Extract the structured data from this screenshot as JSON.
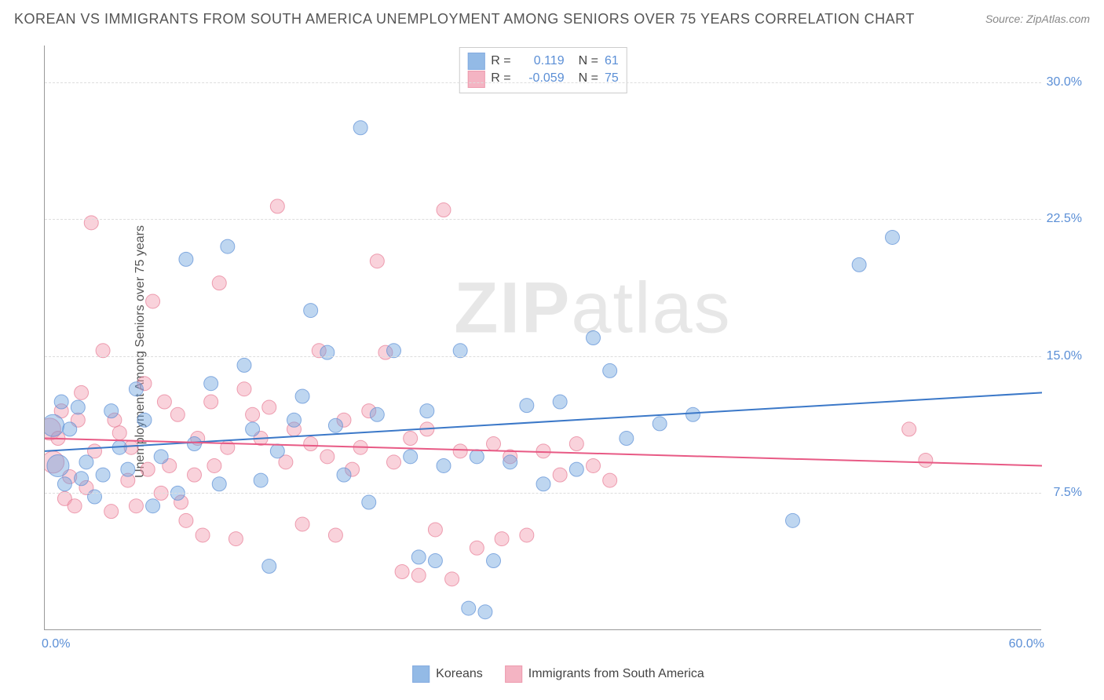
{
  "header": {
    "title": "KOREAN VS IMMIGRANTS FROM SOUTH AMERICA UNEMPLOYMENT AMONG SENIORS OVER 75 YEARS CORRELATION CHART",
    "source": "Source: ZipAtlas.com"
  },
  "chart": {
    "type": "scatter_with_regression",
    "ylabel": "Unemployment Among Seniors over 75 years",
    "xlim": [
      0,
      60
    ],
    "ylim": [
      0,
      32
    ],
    "xtick_labels": [
      "0.0%",
      "60.0%"
    ],
    "ytick_values": [
      7.5,
      15.0,
      22.5,
      30.0
    ],
    "ytick_labels": [
      "7.5%",
      "15.0%",
      "22.5%",
      "30.0%"
    ],
    "grid_color": "#dddddd",
    "axis_color": "#999999",
    "background_color": "#ffffff",
    "marker_radius": 9,
    "marker_radius_large": 14,
    "marker_opacity": 0.45,
    "line_width": 2,
    "watermark": "ZIPatlas",
    "series": [
      {
        "name": "Koreans",
        "color": "#6fa3de",
        "stroke": "#5b8fd6",
        "line_color": "#3b78c8",
        "regression": {
          "y_at_x0": 9.8,
          "y_at_x60": 13.0
        },
        "R": "0.119",
        "N": "61",
        "points": [
          {
            "x": 0.5,
            "y": 11.2,
            "r": 14
          },
          {
            "x": 0.8,
            "y": 9.0,
            "r": 14
          },
          {
            "x": 1.0,
            "y": 12.5
          },
          {
            "x": 1.2,
            "y": 8.0
          },
          {
            "x": 1.5,
            "y": 11.0
          },
          {
            "x": 2.0,
            "y": 12.2
          },
          {
            "x": 2.2,
            "y": 8.3
          },
          {
            "x": 2.5,
            "y": 9.2
          },
          {
            "x": 3.0,
            "y": 7.3
          },
          {
            "x": 3.5,
            "y": 8.5
          },
          {
            "x": 4.0,
            "y": 12.0
          },
          {
            "x": 4.5,
            "y": 10.0
          },
          {
            "x": 5.0,
            "y": 8.8
          },
          {
            "x": 5.5,
            "y": 13.2
          },
          {
            "x": 6.0,
            "y": 11.5
          },
          {
            "x": 7.0,
            "y": 9.5
          },
          {
            "x": 8.5,
            "y": 20.3
          },
          {
            "x": 9.0,
            "y": 10.2
          },
          {
            "x": 10.0,
            "y": 13.5
          },
          {
            "x": 10.5,
            "y": 8.0
          },
          {
            "x": 11.0,
            "y": 21.0
          },
          {
            "x": 12.0,
            "y": 14.5
          },
          {
            "x": 12.5,
            "y": 11.0
          },
          {
            "x": 13.0,
            "y": 8.2
          },
          {
            "x": 13.5,
            "y": 3.5
          },
          {
            "x": 14.0,
            "y": 9.8
          },
          {
            "x": 15.0,
            "y": 11.5
          },
          {
            "x": 15.5,
            "y": 12.8
          },
          {
            "x": 16.0,
            "y": 17.5
          },
          {
            "x": 17.0,
            "y": 15.2
          },
          {
            "x": 17.5,
            "y": 11.2
          },
          {
            "x": 18.0,
            "y": 8.5
          },
          {
            "x": 19.0,
            "y": 27.5
          },
          {
            "x": 20.0,
            "y": 11.8
          },
          {
            "x": 21.0,
            "y": 15.3
          },
          {
            "x": 22.0,
            "y": 9.5
          },
          {
            "x": 22.5,
            "y": 4.0
          },
          {
            "x": 23.0,
            "y": 12.0
          },
          {
            "x": 23.5,
            "y": 3.8
          },
          {
            "x": 24.0,
            "y": 9.0
          },
          {
            "x": 25.0,
            "y": 15.3
          },
          {
            "x": 25.5,
            "y": 1.2
          },
          {
            "x": 26.0,
            "y": 9.5
          },
          {
            "x": 26.5,
            "y": 1.0
          },
          {
            "x": 27.0,
            "y": 3.8
          },
          {
            "x": 28.0,
            "y": 9.2
          },
          {
            "x": 29.0,
            "y": 12.3
          },
          {
            "x": 30.0,
            "y": 8.0
          },
          {
            "x": 31.0,
            "y": 12.5
          },
          {
            "x": 32.0,
            "y": 8.8
          },
          {
            "x": 33.0,
            "y": 16.0
          },
          {
            "x": 34.0,
            "y": 14.2
          },
          {
            "x": 35.0,
            "y": 10.5
          },
          {
            "x": 37.0,
            "y": 11.3
          },
          {
            "x": 39.0,
            "y": 11.8
          },
          {
            "x": 45.0,
            "y": 6.0
          },
          {
            "x": 49.0,
            "y": 20.0
          },
          {
            "x": 51.0,
            "y": 21.5
          },
          {
            "x": 6.5,
            "y": 6.8
          },
          {
            "x": 8.0,
            "y": 7.5
          },
          {
            "x": 19.5,
            "y": 7.0
          }
        ]
      },
      {
        "name": "Immigrants from South America",
        "color": "#f19bb0",
        "stroke": "#e77a94",
        "line_color": "#e85a85",
        "regression": {
          "y_at_x0": 10.5,
          "y_at_x60": 9.0
        },
        "R": "-0.059",
        "N": "75",
        "points": [
          {
            "x": 0.3,
            "y": 11.0,
            "r": 14
          },
          {
            "x": 0.5,
            "y": 9.2,
            "r": 14
          },
          {
            "x": 0.8,
            "y": 10.5
          },
          {
            "x": 1.0,
            "y": 12.0
          },
          {
            "x": 1.2,
            "y": 7.2
          },
          {
            "x": 1.5,
            "y": 8.4
          },
          {
            "x": 1.8,
            "y": 6.8
          },
          {
            "x": 2.0,
            "y": 11.5
          },
          {
            "x": 2.2,
            "y": 13.0
          },
          {
            "x": 2.5,
            "y": 7.8
          },
          {
            "x": 2.8,
            "y": 22.3
          },
          {
            "x": 3.0,
            "y": 9.8
          },
          {
            "x": 3.5,
            "y": 15.3
          },
          {
            "x": 4.0,
            "y": 6.5
          },
          {
            "x": 4.5,
            "y": 10.8
          },
          {
            "x": 5.0,
            "y": 8.2
          },
          {
            "x": 5.5,
            "y": 6.8
          },
          {
            "x": 6.0,
            "y": 13.5
          },
          {
            "x": 6.5,
            "y": 18.0
          },
          {
            "x": 7.0,
            "y": 7.5
          },
          {
            "x": 7.5,
            "y": 9.0
          },
          {
            "x": 8.0,
            "y": 11.8
          },
          {
            "x": 8.5,
            "y": 6.0
          },
          {
            "x": 9.0,
            "y": 8.5
          },
          {
            "x": 9.5,
            "y": 5.2
          },
          {
            "x": 10.0,
            "y": 12.5
          },
          {
            "x": 10.5,
            "y": 19.0
          },
          {
            "x": 11.0,
            "y": 10.0
          },
          {
            "x": 11.5,
            "y": 5.0
          },
          {
            "x": 12.0,
            "y": 13.2
          },
          {
            "x": 12.5,
            "y": 11.8
          },
          {
            "x": 13.0,
            "y": 10.5
          },
          {
            "x": 13.5,
            "y": 12.2
          },
          {
            "x": 14.0,
            "y": 23.2
          },
          {
            "x": 14.5,
            "y": 9.2
          },
          {
            "x": 15.0,
            "y": 11.0
          },
          {
            "x": 15.5,
            "y": 5.8
          },
          {
            "x": 16.0,
            "y": 10.2
          },
          {
            "x": 16.5,
            "y": 15.3
          },
          {
            "x": 17.0,
            "y": 9.5
          },
          {
            "x": 17.5,
            "y": 5.2
          },
          {
            "x": 18.0,
            "y": 11.5
          },
          {
            "x": 18.5,
            "y": 8.8
          },
          {
            "x": 19.0,
            "y": 10.0
          },
          {
            "x": 19.5,
            "y": 12.0
          },
          {
            "x": 20.0,
            "y": 20.2
          },
          {
            "x": 20.5,
            "y": 15.2
          },
          {
            "x": 21.0,
            "y": 9.2
          },
          {
            "x": 21.5,
            "y": 3.2
          },
          {
            "x": 22.0,
            "y": 10.5
          },
          {
            "x": 22.5,
            "y": 3.0
          },
          {
            "x": 23.0,
            "y": 11.0
          },
          {
            "x": 23.5,
            "y": 5.5
          },
          {
            "x": 24.0,
            "y": 23.0
          },
          {
            "x": 24.5,
            "y": 2.8
          },
          {
            "x": 25.0,
            "y": 9.8
          },
          {
            "x": 26.0,
            "y": 4.5
          },
          {
            "x": 27.0,
            "y": 10.2
          },
          {
            "x": 27.5,
            "y": 5.0
          },
          {
            "x": 28.0,
            "y": 9.5
          },
          {
            "x": 29.0,
            "y": 5.2
          },
          {
            "x": 30.0,
            "y": 9.8
          },
          {
            "x": 31.0,
            "y": 8.5
          },
          {
            "x": 32.0,
            "y": 10.2
          },
          {
            "x": 33.0,
            "y": 9.0
          },
          {
            "x": 34.0,
            "y": 8.2
          },
          {
            "x": 52.0,
            "y": 11.0
          },
          {
            "x": 53.0,
            "y": 9.3
          },
          {
            "x": 4.2,
            "y": 11.5
          },
          {
            "x": 5.2,
            "y": 10.0
          },
          {
            "x": 6.2,
            "y": 8.8
          },
          {
            "x": 7.2,
            "y": 12.5
          },
          {
            "x": 8.2,
            "y": 7.0
          },
          {
            "x": 9.2,
            "y": 10.5
          },
          {
            "x": 10.2,
            "y": 9.0
          }
        ]
      }
    ],
    "stat_legend": {
      "r_label": "R =",
      "n_label": "N ="
    },
    "bottom_legend": {
      "items": [
        "Koreans",
        "Immigrants from South America"
      ]
    }
  }
}
